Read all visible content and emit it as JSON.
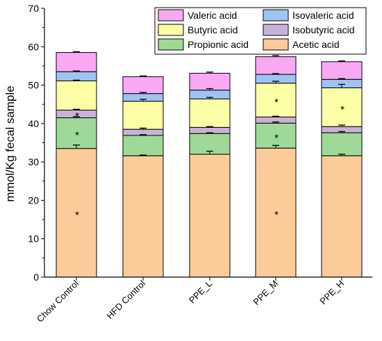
{
  "chart_data": {
    "type": "bar",
    "stacked": true,
    "title": "",
    "xlabel": "",
    "ylabel": "mmol/Kg fecal sample",
    "ylim": [
      0,
      70
    ],
    "yticks": [
      0,
      10,
      20,
      30,
      40,
      50,
      60,
      70
    ],
    "grid": false,
    "legend_position": "top-right",
    "categories": [
      "Chow Control",
      "HFD Control",
      "PPE_L",
      "PPE_M",
      "PPE_H"
    ],
    "series": [
      {
        "name": "Acetic acid",
        "color": "#FBCB9A",
        "values": [
          33.5,
          31.6,
          32.0,
          33.6,
          31.6
        ],
        "errors": [
          0.9,
          0.2,
          0.8,
          0.7,
          0.4
        ],
        "significance": [
          "*",
          "",
          "",
          "*",
          ""
        ]
      },
      {
        "name": "Propionic acid",
        "color": "#9FD997",
        "values": [
          8.0,
          5.3,
          5.4,
          6.5,
          6.0
        ],
        "errors": [
          0.3,
          0.2,
          0.2,
          0.3,
          0.3
        ],
        "significance": [
          "*",
          "",
          "",
          "*",
          ""
        ]
      },
      {
        "name": "Isobutyric acid",
        "color": "#C9B2D9",
        "values": [
          2.0,
          1.6,
          1.6,
          1.6,
          1.6
        ],
        "errors": [
          0.2,
          0.3,
          0.2,
          0.2,
          0.4
        ],
        "significance": [
          "*",
          "",
          "",
          "",
          ""
        ]
      },
      {
        "name": "Butyric acid",
        "color": "#FEFEA6",
        "values": [
          7.6,
          7.3,
          7.4,
          8.8,
          10.1
        ],
        "errors": [
          0.2,
          0.5,
          0.4,
          0.5,
          0.9
        ],
        "significance": [
          "",
          "",
          "",
          "*",
          "*"
        ]
      },
      {
        "name": "Isovaleric acid",
        "color": "#9EC4F2",
        "values": [
          2.4,
          2.0,
          2.3,
          2.3,
          2.2
        ],
        "errors": [
          0.2,
          0.3,
          0.4,
          0.2,
          0.2
        ],
        "significance": [
          "",
          "",
          "",
          "",
          ""
        ]
      },
      {
        "name": "Valeric acid",
        "color": "#F9A8F3",
        "values": [
          5.0,
          4.4,
          4.4,
          4.6,
          4.6
        ],
        "errors": [
          0.2,
          0.2,
          0.3,
          0.3,
          0.2
        ],
        "significance": [
          "",
          "",
          "",
          "",
          ""
        ]
      }
    ],
    "legend_order": [
      "Valeric acid",
      "Isovaleric acid",
      "Butyric acid",
      "Isobutyric acid",
      "Propionic acid",
      "Acetic acid"
    ]
  }
}
